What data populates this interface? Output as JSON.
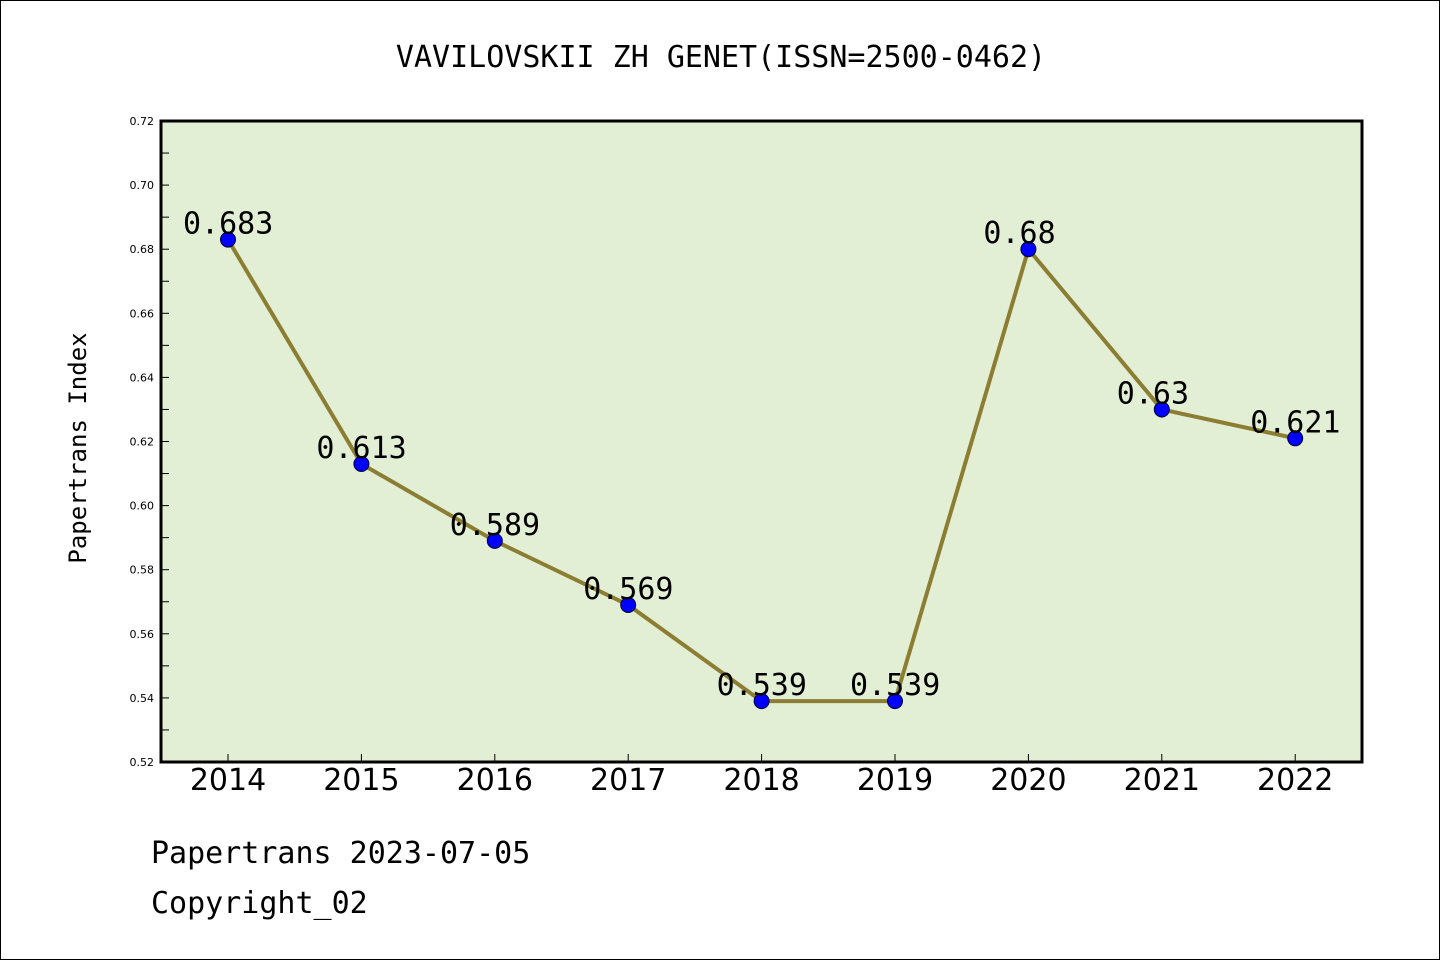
{
  "chart_data": {
    "type": "line",
    "title": "VAVILOVSKII ZH GENET(ISSN=2500-0462)",
    "xlabel": "",
    "ylabel": "Papertrans Index",
    "categories": [
      "2014",
      "2015",
      "2016",
      "2017",
      "2018",
      "2019",
      "2020",
      "2021",
      "2022"
    ],
    "series": [
      {
        "values": [
          0.683,
          0.613,
          0.589,
          0.569,
          0.539,
          0.539,
          0.68,
          0.63,
          0.621
        ],
        "labels": [
          "0.683",
          "0.613",
          "0.589",
          "0.569",
          "0.539",
          "0.539",
          "0.68",
          "0.63",
          "0.621"
        ]
      }
    ],
    "ylim": [
      0.52,
      0.72
    ],
    "yticks": [
      "0.52",
      "0.54",
      "0.56",
      "0.58",
      "0.60",
      "0.62",
      "0.64",
      "0.66",
      "0.68",
      "0.70",
      "0.72"
    ],
    "grid": false,
    "legend": "none",
    "colors": {
      "line": "#8b7d32",
      "marker": "#0000ff",
      "plot_background": "#e2efd5",
      "axis": "#000000"
    }
  },
  "footer": {
    "line1": "Papertrans 2023-07-05",
    "line2": "Copyright_02"
  }
}
